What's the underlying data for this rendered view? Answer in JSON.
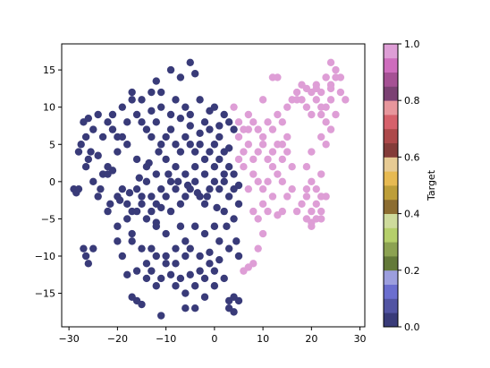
{
  "chart_data": {
    "type": "scatter",
    "xlim": [
      -31.5,
      31.0
    ],
    "ylim": [
      -19.5,
      18.5
    ],
    "xticks": [
      "−30",
      "−20",
      "−10",
      "0",
      "10",
      "20",
      "30"
    ],
    "xtick_values": [
      -30,
      -20,
      -10,
      0,
      10,
      20,
      30
    ],
    "yticks": [
      "−15",
      "−10",
      "−5",
      "0",
      "5",
      "10",
      "15"
    ],
    "ytick_values": [
      -15,
      -10,
      -5,
      0,
      5,
      10,
      15
    ],
    "grid": false,
    "colorbar": {
      "label": "Target",
      "range": [
        0.0,
        1.0
      ],
      "ticks": [
        "0.0",
        "0.2",
        "0.4",
        "0.6",
        "0.8",
        "1.0"
      ],
      "tick_values": [
        0.0,
        0.2,
        0.4,
        0.6,
        0.8,
        1.0
      ],
      "colormap": "tab20b",
      "colors": [
        "#393b79",
        "#5254a3",
        "#6b6ecf",
        "#9c9ede",
        "#637939",
        "#8ca252",
        "#b5cf6b",
        "#cedb9c",
        "#8c6d31",
        "#bd9e39",
        "#e7ba52",
        "#e7cb94",
        "#843c39",
        "#ad494a",
        "#d6616b",
        "#e7969c",
        "#7b4173",
        "#a55194",
        "#ce6dbd",
        "#de9ed6"
      ]
    },
    "series": [
      {
        "target": 0,
        "color": "#393b79",
        "points": [
          [
            -29,
            -1
          ],
          [
            -28.5,
            -1.5
          ],
          [
            -28,
            -1
          ],
          [
            -27.5,
            5
          ],
          [
            -27,
            8
          ],
          [
            -26.5,
            6
          ],
          [
            -26,
            8.5
          ],
          [
            -25.5,
            4
          ],
          [
            -26,
            3
          ],
          [
            -25,
            0
          ],
          [
            -24,
            3.5
          ],
          [
            -23,
            1
          ],
          [
            -22,
            1
          ],
          [
            -21,
            1.5
          ],
          [
            -20,
            -2
          ],
          [
            -19,
            -1
          ],
          [
            -18,
            -3
          ],
          [
            -17,
            -4
          ],
          [
            -16,
            -1
          ],
          [
            -15,
            -2
          ],
          [
            -14,
            0
          ],
          [
            -13,
            -4
          ],
          [
            -12,
            -5.5
          ],
          [
            -12,
            -3
          ],
          [
            -11,
            -1
          ],
          [
            -10,
            -2
          ],
          [
            -9,
            0
          ],
          [
            -8,
            -1
          ],
          [
            -7,
            -3
          ],
          [
            -6,
            -2
          ],
          [
            -5,
            -1
          ],
          [
            -4,
            0
          ],
          [
            -3,
            -2
          ],
          [
            -2,
            -3
          ],
          [
            -1,
            -1
          ],
          [
            0,
            0
          ],
          [
            1,
            -1
          ],
          [
            2,
            0
          ],
          [
            3,
            -2
          ],
          [
            -27,
            -9
          ],
          [
            -26.5,
            -10
          ],
          [
            -26,
            -11
          ],
          [
            -25,
            -9
          ],
          [
            -20,
            -8
          ],
          [
            -17,
            -8
          ],
          [
            -15,
            -9
          ],
          [
            -14,
            -11
          ],
          [
            -13,
            -12
          ],
          [
            -12,
            -10
          ],
          [
            -10,
            -11
          ],
          [
            -9,
            -12.5
          ],
          [
            -8,
            -11
          ],
          [
            -7,
            -13
          ],
          [
            -6,
            -10
          ],
          [
            -5,
            -12.5
          ],
          [
            -4,
            -14
          ],
          [
            -3,
            -12
          ],
          [
            -2,
            -13
          ],
          [
            -1,
            -11
          ],
          [
            0,
            -12
          ],
          [
            1,
            -10.5
          ],
          [
            2,
            -13
          ],
          [
            3,
            -16
          ],
          [
            4,
            -15.5
          ],
          [
            5,
            -16
          ],
          [
            4,
            -17.5
          ],
          [
            -4,
            -17
          ],
          [
            -6,
            -17
          ],
          [
            -11,
            -18
          ],
          [
            -16,
            -16
          ],
          [
            -17,
            -15.5
          ],
          [
            -15,
            -16.5
          ],
          [
            -11,
            -13
          ],
          [
            -8,
            -14
          ],
          [
            -10,
            -10
          ],
          [
            -13,
            -9
          ],
          [
            -16,
            -12
          ],
          [
            -18,
            -12.5
          ],
          [
            -14,
            -13
          ],
          [
            -12,
            -14
          ],
          [
            -6,
            -15
          ],
          [
            -2,
            -15.5
          ],
          [
            0,
            -14
          ],
          [
            3,
            -17
          ],
          [
            -7,
            14
          ],
          [
            -5,
            16
          ],
          [
            -4,
            14.5
          ],
          [
            -9,
            15
          ],
          [
            -12,
            13.5
          ],
          [
            -13,
            12
          ],
          [
            -11,
            12
          ],
          [
            -8,
            11
          ],
          [
            -6,
            10
          ],
          [
            -5,
            9
          ],
          [
            -3,
            11
          ],
          [
            -2,
            8
          ],
          [
            -1,
            9.5
          ],
          [
            0,
            10
          ],
          [
            1,
            7.5
          ],
          [
            2,
            9
          ],
          [
            3,
            8
          ],
          [
            4,
            7
          ],
          [
            -24,
            9
          ],
          [
            -22,
            8
          ],
          [
            -21,
            7
          ],
          [
            -20,
            6
          ],
          [
            -19,
            10
          ],
          [
            -18,
            8
          ],
          [
            -17,
            11
          ],
          [
            -16,
            9
          ],
          [
            -15,
            8
          ],
          [
            -14,
            7
          ],
          [
            -13,
            6
          ],
          [
            -12,
            8
          ],
          [
            -11,
            5
          ],
          [
            -10,
            6
          ],
          [
            -9,
            7
          ],
          [
            -8,
            5
          ],
          [
            -7,
            4
          ],
          [
            -6,
            6
          ],
          [
            -5,
            5
          ],
          [
            -4,
            4
          ],
          [
            -3,
            5
          ],
          [
            -2,
            3
          ],
          [
            -1,
            4
          ],
          [
            0,
            5
          ],
          [
            1,
            3
          ],
          [
            2,
            4
          ],
          [
            3,
            2
          ],
          [
            4,
            1
          ],
          [
            5,
            -3
          ],
          [
            4,
            -5
          ],
          [
            2,
            -4
          ],
          [
            0,
            -6
          ],
          [
            -2,
            -7
          ],
          [
            -4,
            -6
          ],
          [
            -6,
            -8
          ],
          [
            -8,
            -9
          ],
          [
            -10,
            -7
          ],
          [
            -12,
            -6
          ],
          [
            -14,
            -5
          ],
          [
            -16,
            -4
          ],
          [
            -18,
            -5
          ],
          [
            -20,
            -6
          ],
          [
            -22,
            -4
          ],
          [
            -24,
            -2
          ],
          [
            -22,
            2
          ],
          [
            -20,
            4
          ],
          [
            -18,
            5
          ],
          [
            -16,
            3
          ],
          [
            -14,
            2
          ],
          [
            -12,
            1
          ],
          [
            -10,
            3
          ],
          [
            -8,
            2
          ],
          [
            -6,
            1
          ],
          [
            -4,
            2
          ],
          [
            -2,
            1
          ],
          [
            0,
            2
          ],
          [
            2,
            1
          ],
          [
            4,
            -1
          ],
          [
            5,
            -0.5
          ],
          [
            3,
            4.5
          ],
          [
            1,
            6
          ],
          [
            -1,
            7
          ],
          [
            -3,
            6.5
          ],
          [
            -5,
            7.5
          ],
          [
            -7,
            8.5
          ],
          [
            -9,
            9
          ],
          [
            -11,
            10
          ],
          [
            -13,
            9.5
          ],
          [
            -15,
            11
          ],
          [
            -17,
            12
          ],
          [
            -19,
            6
          ],
          [
            -21,
            9
          ],
          [
            -23,
            6
          ],
          [
            -25,
            7
          ],
          [
            -28,
            4
          ],
          [
            -26.5,
            2
          ],
          [
            -23.5,
            -1
          ],
          [
            -21.5,
            -3
          ],
          [
            -19.5,
            -2.5
          ],
          [
            -17.5,
            -1.5
          ],
          [
            -15.5,
            0.5
          ],
          [
            -13.5,
            2.5
          ],
          [
            -11.5,
            4
          ],
          [
            -9.5,
            1
          ],
          [
            -7.5,
            0
          ],
          [
            -5.5,
            -0.5
          ],
          [
            -3.5,
            -1.5
          ],
          [
            -1.5,
            -2
          ],
          [
            0.5,
            -3.5
          ],
          [
            2.5,
            -6
          ],
          [
            4.5,
            -8
          ],
          [
            5,
            -10
          ],
          [
            3,
            -9
          ],
          [
            1,
            -8
          ],
          [
            -1,
            -9.5
          ],
          [
            -3,
            -10
          ],
          [
            -5,
            -9
          ],
          [
            -7,
            -6
          ],
          [
            -9,
            -4
          ],
          [
            -11,
            -3.5
          ],
          [
            -13,
            -2
          ],
          [
            -15,
            -3
          ],
          [
            -17,
            -7
          ],
          [
            -19,
            -10
          ]
        ]
      },
      {
        "target": 1,
        "color": "#de9ed6",
        "points": [
          [
            4,
            10
          ],
          [
            5,
            8
          ],
          [
            6,
            7
          ],
          [
            7,
            9
          ],
          [
            8,
            8
          ],
          [
            9,
            7
          ],
          [
            10,
            6
          ],
          [
            11,
            8
          ],
          [
            12,
            7
          ],
          [
            13,
            9
          ],
          [
            14,
            8
          ],
          [
            15,
            10
          ],
          [
            16,
            11
          ],
          [
            17,
            12
          ],
          [
            18,
            11
          ],
          [
            19,
            10
          ],
          [
            20,
            12
          ],
          [
            21,
            13
          ],
          [
            22,
            12
          ],
          [
            23,
            14
          ],
          [
            24,
            13
          ],
          [
            25,
            15
          ],
          [
            26,
            12
          ],
          [
            27,
            11
          ],
          [
            24,
            11
          ],
          [
            22,
            10
          ],
          [
            20,
            9
          ],
          [
            21,
            11
          ],
          [
            23,
            10
          ],
          [
            25,
            9
          ],
          [
            23,
            8
          ],
          [
            24,
            7
          ],
          [
            22,
            6
          ],
          [
            23,
            5
          ],
          [
            20,
            4
          ],
          [
            19,
            2
          ],
          [
            20,
            0
          ],
          [
            21,
            -1
          ],
          [
            22,
            -2
          ],
          [
            21,
            -3
          ],
          [
            20,
            -4
          ],
          [
            19,
            -5
          ],
          [
            21,
            -5
          ],
          [
            20,
            -6
          ],
          [
            22,
            -4
          ],
          [
            23,
            -2
          ],
          [
            22,
            1
          ],
          [
            19,
            -2
          ],
          [
            18,
            -3
          ],
          [
            17,
            -4
          ],
          [
            16,
            -1
          ],
          [
            15,
            -2
          ],
          [
            14,
            0
          ],
          [
            13,
            1
          ],
          [
            12,
            2
          ],
          [
            11,
            0
          ],
          [
            10,
            -1
          ],
          [
            9,
            0
          ],
          [
            8,
            1
          ],
          [
            7,
            -1
          ],
          [
            6,
            2
          ],
          [
            5,
            3
          ],
          [
            6,
            4
          ],
          [
            7,
            5
          ],
          [
            8,
            3
          ],
          [
            9,
            4
          ],
          [
            10,
            5
          ],
          [
            11,
            3
          ],
          [
            12,
            4
          ],
          [
            13,
            5
          ],
          [
            14,
            3
          ],
          [
            15,
            4
          ],
          [
            16,
            2
          ],
          [
            15,
            6
          ],
          [
            14,
            5
          ],
          [
            12,
            -2
          ],
          [
            11,
            -4
          ],
          [
            10,
            -3
          ],
          [
            9,
            -5
          ],
          [
            8,
            -4
          ],
          [
            10,
            -7
          ],
          [
            9,
            -9
          ],
          [
            8,
            -11
          ],
          [
            7,
            -11.5
          ],
          [
            6,
            -12
          ],
          [
            12,
            14
          ],
          [
            13,
            14
          ],
          [
            5,
            6
          ],
          [
            7,
            7
          ],
          [
            10,
            11
          ],
          [
            21,
            12.5
          ],
          [
            19,
            12.5
          ],
          [
            24,
            12.5
          ],
          [
            26,
            14
          ],
          [
            24,
            16
          ],
          [
            23,
            14
          ],
          [
            25,
            14
          ],
          [
            18,
            13
          ],
          [
            17,
            11
          ],
          [
            22,
            9
          ],
          [
            22,
            -5
          ],
          [
            20,
            -5.5
          ],
          [
            19,
            -1
          ],
          [
            14,
            -4
          ],
          [
            13,
            -4.5
          ]
        ]
      }
    ]
  }
}
